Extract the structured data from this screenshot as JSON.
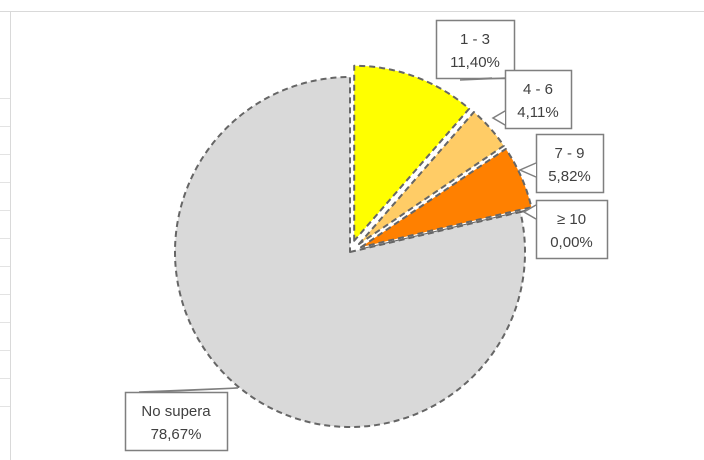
{
  "chart_data": {
    "type": "pie",
    "title": "",
    "slices": [
      {
        "category": "1 - 3",
        "value": 11.4,
        "label_value": "11,40%",
        "color": "#FFFF00",
        "exploded": true
      },
      {
        "category": "4 - 6",
        "value": 4.11,
        "label_value": "4,11%",
        "color": "#FFCC66",
        "exploded": true
      },
      {
        "category": "7 - 9",
        "value": 5.82,
        "label_value": "5,82%",
        "color": "#FF8000",
        "exploded": true
      },
      {
        "category": "≥ 10",
        "value": 0.0,
        "label_value": "0,00%",
        "color": "#FF0000",
        "exploded": true
      },
      {
        "category": "No supera",
        "value": 78.67,
        "label_value": "78,67%",
        "color": "#D9D9D9",
        "exploded": false
      }
    ],
    "start_angle_deg": 0,
    "direction": "clockwise",
    "slice_border": "dashed",
    "legend": "none",
    "data_labels": "callouts with category and percentage"
  },
  "colors": {
    "border": "#666666",
    "callout_border": "#7F7F7F",
    "label_text": "#404040",
    "chart_frame": "#D9D9D9",
    "sheet_grid": "#E0E0E0"
  }
}
